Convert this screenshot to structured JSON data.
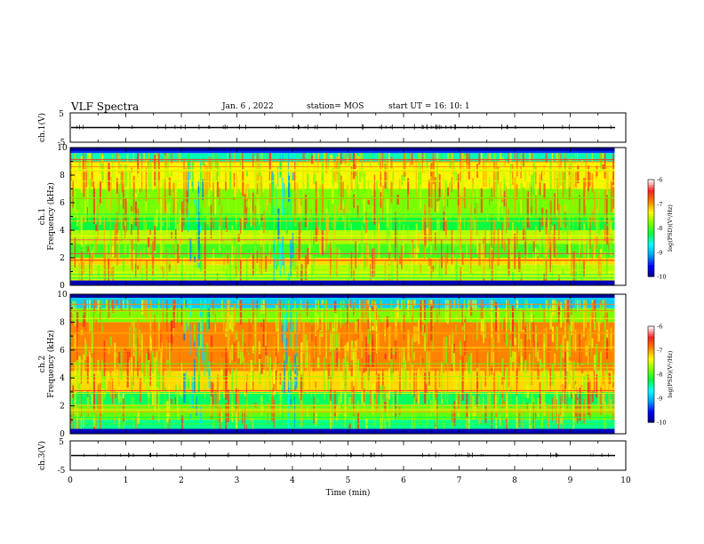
{
  "header": {
    "title": "VLF Spectra",
    "date": "Jan. 6 , 2022",
    "station": "station= MOS",
    "start": "start UT =  16: 10: 1"
  },
  "chart_data": [
    {
      "type": "line",
      "panel": "ch1_voltage",
      "ylabel": "ch.1(V)",
      "ylim": [
        -5,
        5
      ],
      "yticks": [
        "5",
        "-5"
      ],
      "x": [
        0,
        10
      ],
      "values": [
        0,
        0
      ]
    },
    {
      "type": "heatmap",
      "panel": "ch1_spectrogram",
      "ylabel": "ch.1\nFrequency (kHz)",
      "ylim": [
        0,
        10
      ],
      "yticks": [
        "0",
        "2",
        "4",
        "6",
        "8",
        "10"
      ],
      "xlim": [
        0,
        10
      ],
      "x_data_end": 9.8,
      "colorbar": {
        "label": "log(PSD)(V²/Hz)",
        "range": [
          -10,
          -6
        ],
        "ticks": [
          "-6",
          "-7",
          "-8",
          "-9",
          "-10"
        ]
      },
      "bands": [
        {
          "f_low": 0,
          "f_high": 1,
          "level": -7.5
        },
        {
          "f_low": 1,
          "f_high": 1.5,
          "level": -7.6
        },
        {
          "f_low": 1.5,
          "f_high": 2,
          "level": -7.2
        },
        {
          "f_low": 2,
          "f_high": 3,
          "level": -8.0
        },
        {
          "f_low": 3,
          "f_high": 4,
          "level": -7.6
        },
        {
          "f_low": 4,
          "f_high": 5,
          "level": -8.2
        },
        {
          "f_low": 5,
          "f_high": 7,
          "level": -7.8
        },
        {
          "f_low": 7,
          "f_high": 9,
          "level": -7.3
        },
        {
          "f_low": 9,
          "f_high": 9.6,
          "level": -8.5
        },
        {
          "f_low": 9.6,
          "f_high": 10,
          "level": -9.4
        }
      ],
      "quiet_intervals": [
        [
          2.1,
          2.4
        ],
        [
          3.6,
          4.0
        ]
      ]
    },
    {
      "type": "heatmap",
      "panel": "ch2_spectrogram",
      "ylabel": "ch.2\nFrequency (kHz)",
      "ylim": [
        0,
        10
      ],
      "yticks": [
        "0",
        "2",
        "4",
        "6",
        "8",
        "10"
      ],
      "xlim": [
        0,
        10
      ],
      "x_data_end": 9.8,
      "colorbar": {
        "label": "log(PSD)(V²/Hz)",
        "range": [
          -10,
          -6
        ],
        "ticks": [
          "-6",
          "-7",
          "-8",
          "-9",
          "-10"
        ]
      },
      "bands": [
        {
          "f_low": 0,
          "f_high": 1,
          "level": -8.4
        },
        {
          "f_low": 1,
          "f_high": 2,
          "level": -7.9
        },
        {
          "f_low": 2,
          "f_high": 3,
          "level": -8.3
        },
        {
          "f_low": 3,
          "f_high": 4.5,
          "level": -7.2
        },
        {
          "f_low": 4.5,
          "f_high": 8,
          "level": -6.9
        },
        {
          "f_low": 8,
          "f_high": 9,
          "level": -7.8
        },
        {
          "f_low": 9,
          "f_high": 10,
          "level": -8.9
        }
      ],
      "quiet_intervals": [
        [
          2.0,
          2.5
        ],
        [
          3.8,
          4.1
        ]
      ]
    },
    {
      "type": "line",
      "panel": "ch3_voltage",
      "ylabel": "ch.3(V)",
      "ylim": [
        -5,
        5
      ],
      "yticks": [
        "5",
        "-5"
      ],
      "xlabel": "Time (min)",
      "xticks": [
        "0",
        "1",
        "2",
        "3",
        "4",
        "5",
        "6",
        "7",
        "8",
        "9",
        "10"
      ],
      "x": [
        0,
        10
      ],
      "values": [
        0,
        0
      ]
    }
  ],
  "palette": {
    "colormap": [
      "#00007f",
      "#0000ff",
      "#00a0ff",
      "#00ffff",
      "#00ff40",
      "#80ff00",
      "#ffff00",
      "#ff8000",
      "#ff2020",
      "#ffffff"
    ],
    "axis": "#000000"
  }
}
